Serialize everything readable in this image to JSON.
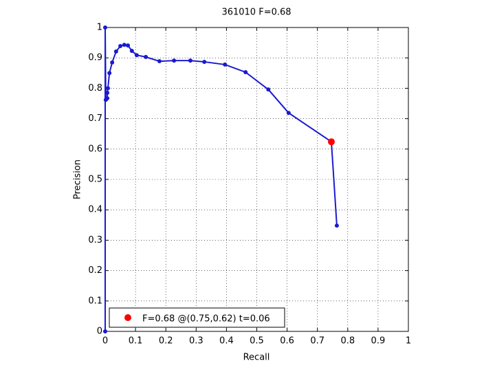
{
  "chart_data": {
    "type": "line",
    "title": "361010 F=0.68",
    "xlabel": "Recall",
    "ylabel": "Precision",
    "xlim": [
      0,
      1
    ],
    "ylim": [
      0,
      1
    ],
    "xticks": [
      0,
      0.1,
      0.2,
      0.3,
      0.4,
      0.5,
      0.6,
      0.7,
      0.8,
      0.9,
      1
    ],
    "yticks": [
      0,
      0.1,
      0.2,
      0.3,
      0.4,
      0.5,
      0.6,
      0.7,
      0.8,
      0.9,
      1
    ],
    "grid": true,
    "legend": "lower left",
    "series": [
      {
        "color": "#1a1ad0",
        "x": [
          0,
          0,
          0.002,
          0.007,
          0.007,
          0.009,
          0.014,
          0.023,
          0.036,
          0.05,
          0.063,
          0.075,
          0.088,
          0.104,
          0.134,
          0.179,
          0.227,
          0.281,
          0.327,
          0.395,
          0.463,
          0.538,
          0.605,
          0.746,
          0.764
        ],
        "values": [
          0,
          1,
          0.762,
          0.767,
          0.785,
          0.8,
          0.85,
          0.885,
          0.921,
          0.939,
          0.943,
          0.941,
          0.923,
          0.909,
          0.903,
          0.889,
          0.891,
          0.891,
          0.887,
          0.878,
          0.853,
          0.796,
          0.719,
          0.624,
          0.348
        ]
      },
      {
        "name": "F=0.68 @(0.75,0.62) t=0.06",
        "color": "#ff0000",
        "marker_only": true,
        "x": [
          0.746
        ],
        "values": [
          0.624
        ]
      }
    ]
  }
}
